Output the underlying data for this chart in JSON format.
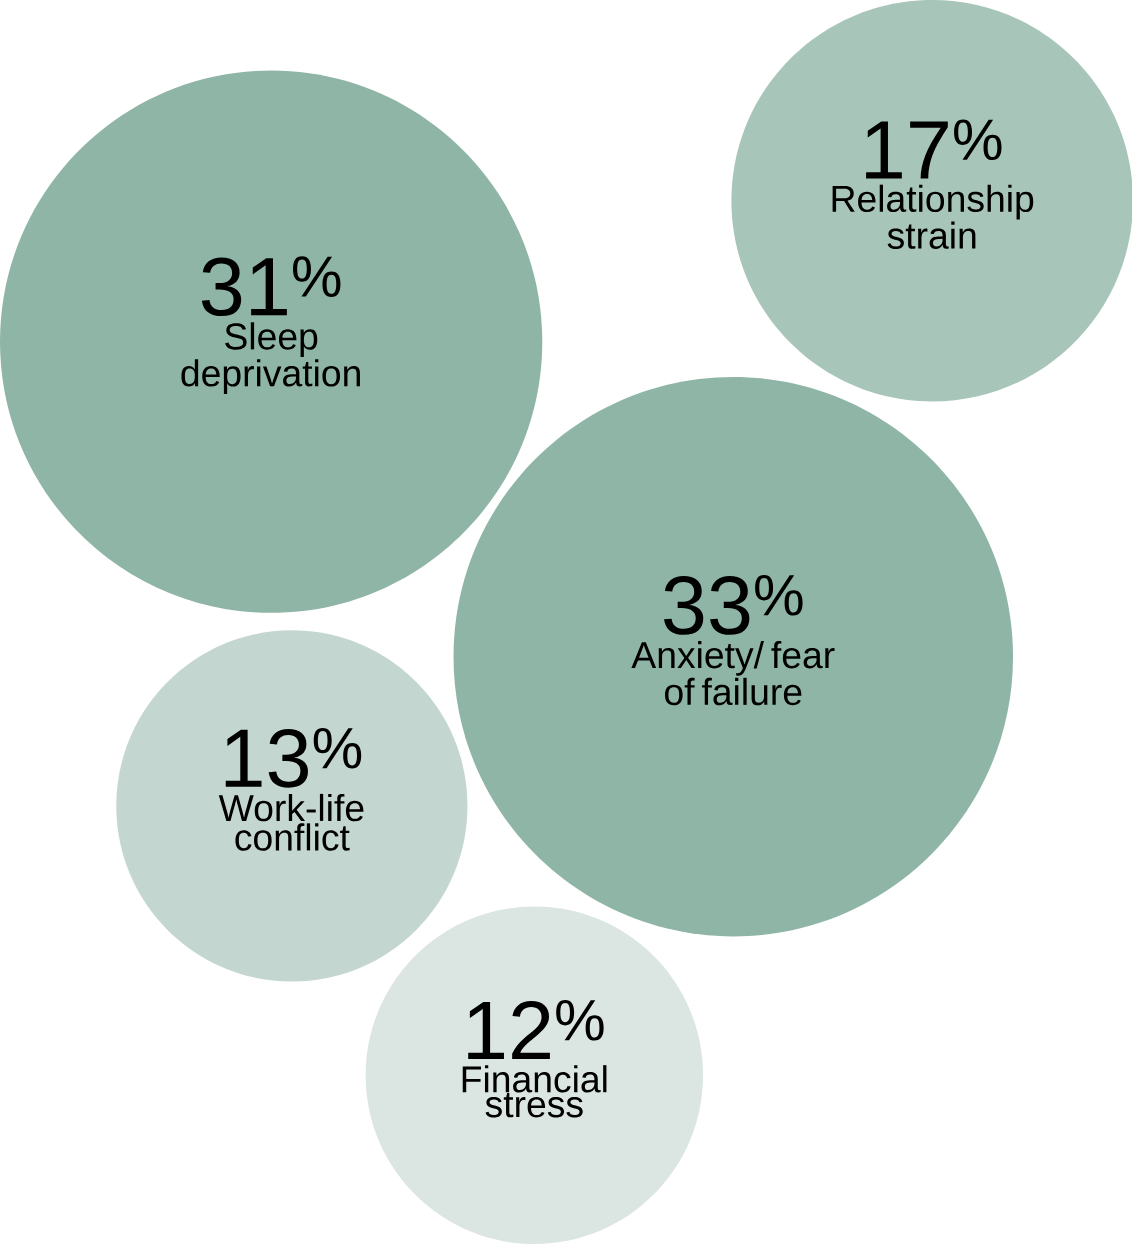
{
  "chart_data": {
    "type": "other",
    "categories": [
      "Sleep deprivation",
      "Relationship strain",
      "Anxiety/ fear of failure",
      "Work-life conflict",
      "Financial stress"
    ],
    "values": [
      31,
      17,
      33,
      13,
      12
    ],
    "value_labels": [
      "31$^{%}$",
      "17$^{%}$",
      "33$^{%}$",
      "13$^{%}$",
      "12$^{%}$"
    ],
    "colors": [
      "#8fb5a7",
      "#a8c5ba",
      "#8fb5a7",
      "#c3d6cf",
      "#dbe5e1"
    ]
  }
}
